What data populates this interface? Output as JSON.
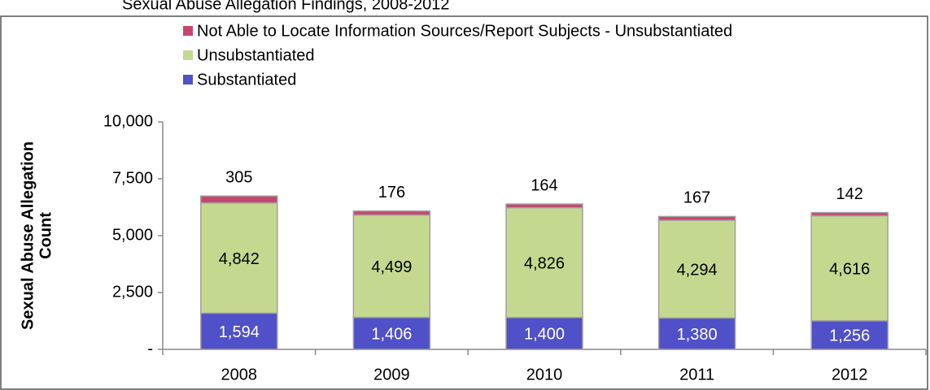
{
  "chart_data": {
    "type": "stacked_bar",
    "title": "Sexual Abuse Allegation Findings, 2008-2012",
    "y_label": [
      "Sexual Abuse Allegation",
      "Count"
    ],
    "categories": [
      "2008",
      "2009",
      "2010",
      "2011",
      "2012"
    ],
    "series": [
      {
        "name": "Substantiated",
        "color": "#5050c8",
        "values": [
          1594,
          1406,
          1400,
          1380,
          1256
        ],
        "value_labels": [
          "1,594",
          "1,406",
          "1,400",
          "1,380",
          "1,256"
        ]
      },
      {
        "name": "Unsubstantiated",
        "color": "#c4d98f",
        "values": [
          4842,
          4499,
          4826,
          4294,
          4616
        ],
        "value_labels": [
          "4,842",
          "4,499",
          "4,826",
          "4,294",
          "4,616"
        ]
      },
      {
        "name": "Not Able to Locate Information Sources/Report Subjects - Unsubstantiated",
        "color": "#c8466e",
        "values": [
          305,
          176,
          164,
          167,
          142
        ]
      }
    ],
    "ylim": [
      0,
      10000
    ],
    "yticks": [
      {
        "value": 0,
        "label": "-"
      },
      {
        "value": 2500,
        "label": "2,500"
      },
      {
        "value": 5000,
        "label": "5,000"
      },
      {
        "value": 7500,
        "label": "7,500"
      },
      {
        "value": 10000,
        "label": "10,000"
      }
    ],
    "grid": false,
    "legend": "top-left"
  }
}
